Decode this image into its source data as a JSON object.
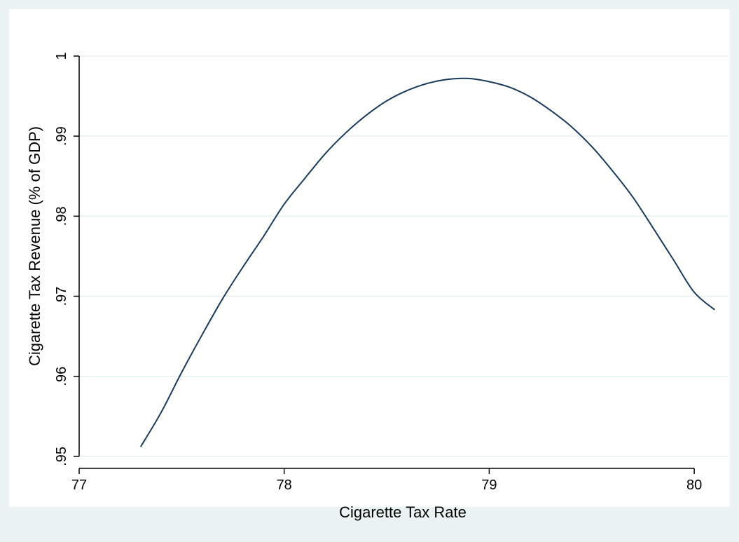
{
  "chart_data": {
    "type": "line",
    "xlabel": "Cigarette Tax Rate",
    "ylabel": "Cigarette Tax Revenue (% of GDP)",
    "xlim": [
      77,
      80.15
    ],
    "ylim": [
      0.9485,
      1.0035
    ],
    "x_ticks": [
      {
        "value": 77,
        "label": "77"
      },
      {
        "value": 78,
        "label": "78"
      },
      {
        "value": 79,
        "label": "79"
      },
      {
        "value": 80,
        "label": "80"
      }
    ],
    "y_ticks": [
      {
        "value": 0.95,
        "label": ".95"
      },
      {
        "value": 0.96,
        "label": ".96"
      },
      {
        "value": 0.97,
        "label": ".97"
      },
      {
        "value": 0.98,
        "label": ".98"
      },
      {
        "value": 0.99,
        "label": ".99"
      },
      {
        "value": 1.0,
        "label": "1"
      }
    ],
    "grid": "horizontal",
    "colors": {
      "background": "#eaf2f3",
      "plot_area": "#ffffff",
      "grid": "#e8eff0",
      "line": "#1a3a5c"
    },
    "series": [
      {
        "x": [
          77.3,
          77.4,
          77.5,
          77.6,
          77.7,
          77.8,
          77.9,
          78.0,
          78.1,
          78.2,
          78.3,
          78.4,
          78.5,
          78.6,
          78.7,
          78.8,
          78.9,
          79.0,
          79.1,
          79.2,
          79.3,
          79.4,
          79.5,
          79.6,
          79.7,
          79.8,
          79.9,
          80.0,
          80.1
        ],
        "y": [
          0.9512,
          0.9555,
          0.9605,
          0.9652,
          0.9697,
          0.9737,
          0.9775,
          0.9815,
          0.9847,
          0.9878,
          0.9904,
          0.9926,
          0.9944,
          0.9957,
          0.9966,
          0.9971,
          0.9972,
          0.9968,
          0.9961,
          0.9949,
          0.9932,
          0.9912,
          0.9887,
          0.9857,
          0.9824,
          0.9785,
          0.9745,
          0.9705,
          0.9683
        ]
      }
    ]
  }
}
